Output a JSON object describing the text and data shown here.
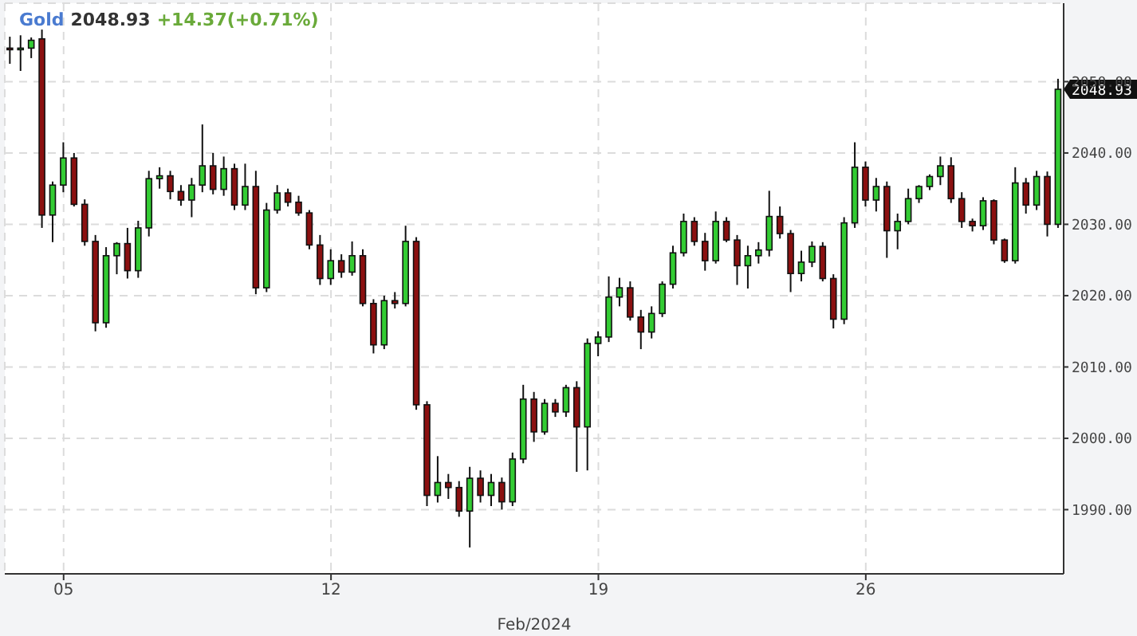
{
  "chart_data": {
    "type": "candlestick",
    "title": "Gold",
    "subtitle": "2048.93",
    "xlabel": "Feb/2024",
    "annotations": [
      "+14.37(+0.71%)",
      "2048.93"
    ],
    "categories": [
      null,
      null,
      null,
      null,
      null,
      "05",
      null,
      null,
      null,
      null,
      null,
      null,
      null,
      null,
      null,
      null,
      null,
      null,
      null,
      null,
      null,
      null,
      null,
      null,
      null,
      null,
      null,
      null,
      null,
      null,
      "12",
      null,
      null,
      null,
      null,
      null,
      null,
      null,
      null,
      null,
      null,
      null,
      null,
      null,
      null,
      null,
      null,
      null,
      null,
      null,
      null,
      null,
      null,
      null,
      null,
      "19",
      null,
      null,
      null,
      null,
      null,
      null,
      null,
      null,
      null,
      null,
      null,
      null,
      null,
      null,
      null,
      null,
      null,
      null,
      null,
      null,
      null,
      null,
      null,
      null,
      "26",
      null,
      null,
      null,
      null,
      null,
      null,
      null,
      null,
      null,
      null,
      null,
      null,
      null,
      null,
      null,
      null,
      null,
      null
    ],
    "ohlc": [
      [
        2054.7,
        2056.3,
        2052.5,
        2054.6
      ],
      [
        2054.6,
        2056.5,
        2051.5,
        2054.7
      ],
      [
        2054.7,
        2056.2,
        2053.3,
        2055.8
      ],
      [
        2056,
        2057.3,
        2029.5,
        2031.3
      ],
      [
        2031.3,
        2036,
        2027.5,
        2035.5
      ],
      [
        2035.5,
        2041.5,
        2034.5,
        2039.3
      ],
      [
        2039.3,
        2040,
        2032.5,
        2032.8
      ],
      [
        2032.8,
        2033.5,
        2027,
        2027.6
      ],
      [
        2027.6,
        2028.5,
        2015,
        2016.2
      ],
      [
        2016.2,
        2026.8,
        2015.5,
        2025.6
      ],
      [
        2025.6,
        2027.5,
        2023,
        2027.3
      ],
      [
        2027.3,
        2029.5,
        2022.4,
        2023.5
      ],
      [
        2023.5,
        2030.5,
        2022.5,
        2029.5
      ],
      [
        2029.5,
        2037.5,
        2028.3,
        2036.4
      ],
      [
        2036.4,
        2038,
        2035,
        2036.8
      ],
      [
        2036.8,
        2037.5,
        2033.5,
        2034.6
      ],
      [
        2034.6,
        2035.5,
        2032.6,
        2033.4
      ],
      [
        2033.4,
        2036.5,
        2031,
        2035.5
      ],
      [
        2035.5,
        2044,
        2034.5,
        2038.2
      ],
      [
        2038.2,
        2040,
        2034.2,
        2034.9
      ],
      [
        2034.9,
        2039.5,
        2034,
        2037.8
      ],
      [
        2037.8,
        2038.5,
        2032,
        2032.7
      ],
      [
        2032.7,
        2038.5,
        2032,
        2035.3
      ],
      [
        2035.3,
        2037.5,
        2020.2,
        2021.1
      ],
      [
        2021.1,
        2033,
        2020.5,
        2032
      ],
      [
        2032,
        2035.5,
        2031.5,
        2034.4
      ],
      [
        2034.4,
        2035,
        2032.5,
        2033.1
      ],
      [
        2033.1,
        2034,
        2031.2,
        2031.6
      ],
      [
        2031.6,
        2032,
        2026.5,
        2027.1
      ],
      [
        2027.1,
        2028.5,
        2021.5,
        2022.4
      ],
      [
        2022.4,
        2026.5,
        2021.5,
        2024.9
      ],
      [
        2024.9,
        2025.8,
        2022.5,
        2023.3
      ],
      [
        2023.3,
        2027.6,
        2022.8,
        2025.6
      ],
      [
        2025.6,
        2026.5,
        2018.5,
        2018.9
      ],
      [
        2018.9,
        2019.5,
        2011.9,
        2013.1
      ],
      [
        2013.1,
        2020,
        2012.5,
        2019.3
      ],
      [
        2019.3,
        2020.5,
        2018.2,
        2018.9
      ],
      [
        2018.9,
        2029.8,
        2018.5,
        2027.6
      ],
      [
        2027.6,
        2028.2,
        2004,
        2004.7
      ],
      [
        2004.7,
        2005.2,
        1990.5,
        1992
      ],
      [
        1992,
        1997.5,
        1991,
        1993.8
      ],
      [
        1993.8,
        1995,
        1991.5,
        1993.1
      ],
      [
        1993.1,
        1994,
        1989,
        1989.8
      ],
      [
        1989.8,
        1996,
        1984.7,
        1994.4
      ],
      [
        1994.4,
        1995.5,
        1991,
        1992
      ],
      [
        1992,
        1995,
        1990.5,
        1993.8
      ],
      [
        1993.8,
        1994.5,
        1990,
        1991.1
      ],
      [
        1991.1,
        1998,
        1990.5,
        1997.1
      ],
      [
        1997.1,
        2007.5,
        1996.5,
        2005.5
      ],
      [
        2005.5,
        2006.5,
        1999.5,
        2000.9
      ],
      [
        2000.9,
        2005.5,
        2000.5,
        2004.9
      ],
      [
        2004.9,
        2005.5,
        2003,
        2003.7
      ],
      [
        2003.7,
        2007.5,
        2003,
        2007.1
      ],
      [
        2007.1,
        2008,
        1995.3,
        2001.6
      ],
      [
        2001.6,
        2014,
        1995.5,
        2013.3
      ],
      [
        2013.3,
        2015,
        2011.5,
        2014.2
      ],
      [
        2014.2,
        2022.7,
        2013.5,
        2019.8
      ],
      [
        2019.8,
        2022.5,
        2018.5,
        2021.1
      ],
      [
        2021.1,
        2022,
        2016.5,
        2017
      ],
      [
        2017,
        2018,
        2012.5,
        2014.9
      ],
      [
        2014.9,
        2018.5,
        2014,
        2017.5
      ],
      [
        2017.5,
        2022,
        2017,
        2021.6
      ],
      [
        2021.6,
        2027,
        2021,
        2026
      ],
      [
        2026,
        2031.5,
        2025.5,
        2030.4
      ],
      [
        2030.4,
        2031,
        2027,
        2027.6
      ],
      [
        2027.6,
        2028.8,
        2023.5,
        2024.9
      ],
      [
        2024.9,
        2031.8,
        2024.5,
        2030.4
      ],
      [
        2030.4,
        2031,
        2027.5,
        2027.8
      ],
      [
        2027.8,
        2028.5,
        2021.5,
        2024.2
      ],
      [
        2024.2,
        2027,
        2021,
        2025.6
      ],
      [
        2025.6,
        2027.5,
        2024.5,
        2026.4
      ],
      [
        2026.4,
        2034.7,
        2025.5,
        2031.1
      ],
      [
        2031.1,
        2032.5,
        2028,
        2028.7
      ],
      [
        2028.7,
        2029.2,
        2020.5,
        2023.1
      ],
      [
        2023.1,
        2026.3,
        2022,
        2024.7
      ],
      [
        2024.7,
        2027.6,
        2024,
        2026.9
      ],
      [
        2026.9,
        2027.5,
        2022,
        2022.4
      ],
      [
        2022.4,
        2023,
        2015.4,
        2016.7
      ],
      [
        2016.7,
        2031,
        2016,
        2030.2
      ],
      [
        2030.2,
        2041.5,
        2029.5,
        2038
      ],
      [
        2038,
        2038.8,
        2032.5,
        2033.4
      ],
      [
        2033.4,
        2036.5,
        2031.8,
        2035.3
      ],
      [
        2035.3,
        2036,
        2025.3,
        2029.1
      ],
      [
        2029.1,
        2031.5,
        2026.5,
        2030.4
      ],
      [
        2030.4,
        2035,
        2030,
        2033.6
      ],
      [
        2033.6,
        2035.5,
        2033,
        2035.3
      ],
      [
        2035.3,
        2037,
        2034.8,
        2036.7
      ],
      [
        2036.7,
        2039.5,
        2035.5,
        2038.2
      ],
      [
        2038.2,
        2039.4,
        2033,
        2033.6
      ],
      [
        2033.6,
        2034.5,
        2029.5,
        2030.4
      ],
      [
        2030.4,
        2030.8,
        2029,
        2029.8
      ],
      [
        2029.8,
        2033.8,
        2029.2,
        2033.3
      ],
      [
        2033.3,
        2033.5,
        2027.2,
        2027.8
      ],
      [
        2027.8,
        2028,
        2024.6,
        2024.9
      ],
      [
        2024.9,
        2038,
        2024.5,
        2035.8
      ],
      [
        2035.8,
        2036.5,
        2031.5,
        2032.7
      ],
      [
        2032.7,
        2037.5,
        2032,
        2036.7
      ],
      [
        2036.7,
        2037.4,
        2028.3,
        2030
      ],
      [
        2030,
        2050.4,
        2029.5,
        2048.93
      ]
    ],
    "colors": [
      "#8b1010",
      "#33cc33",
      "#33cc33",
      "#8b1010",
      "#33cc33",
      "#33cc33",
      "#8b1010",
      "#8b1010",
      "#8b1010",
      "#33cc33",
      "#33cc33",
      "#8b1010",
      "#33cc33",
      "#33cc33",
      "#33cc33",
      "#8b1010",
      "#8b1010",
      "#33cc33",
      "#33cc33",
      "#8b1010",
      "#33cc33",
      "#8b1010",
      "#33cc33",
      "#8b1010",
      "#33cc33",
      "#33cc33",
      "#8b1010",
      "#8b1010",
      "#8b1010",
      "#8b1010",
      "#33cc33",
      "#8b1010",
      "#33cc33",
      "#8b1010",
      "#8b1010",
      "#33cc33",
      "#8b1010",
      "#33cc33",
      "#8b1010",
      "#8b1010",
      "#33cc33",
      "#8b1010",
      "#8b1010",
      "#33cc33",
      "#8b1010",
      "#33cc33",
      "#8b1010",
      "#33cc33",
      "#33cc33",
      "#8b1010",
      "#33cc33",
      "#8b1010",
      "#33cc33",
      "#8b1010",
      "#33cc33",
      "#33cc33",
      "#33cc33",
      "#33cc33",
      "#8b1010",
      "#8b1010",
      "#33cc33",
      "#33cc33",
      "#33cc33",
      "#33cc33",
      "#8b1010",
      "#8b1010",
      "#33cc33",
      "#8b1010",
      "#8b1010",
      "#33cc33",
      "#33cc33",
      "#33cc33",
      "#8b1010",
      "#8b1010",
      "#33cc33",
      "#33cc33",
      "#8b1010",
      "#8b1010",
      "#33cc33",
      "#33cc33",
      "#8b1010",
      "#33cc33",
      "#8b1010",
      "#33cc33",
      "#33cc33",
      "#33cc33",
      "#33cc33",
      "#33cc33",
      "#8b1010",
      "#8b1010",
      "#8b1010",
      "#33cc33",
      "#8b1010",
      "#8b1010",
      "#33cc33",
      "#8b1010",
      "#33cc33",
      "#8b1010",
      "#33cc33"
    ],
    "ylim": [
      1981,
      2061
    ],
    "yticks": [
      {
        "value": 1990,
        "label": "1990.00"
      },
      {
        "value": 2000,
        "label": "2000.00"
      },
      {
        "value": 2010,
        "label": "2010.00"
      },
      {
        "value": 2020,
        "label": "2020.00"
      },
      {
        "value": 2030,
        "label": "2030.00"
      },
      {
        "value": 2040,
        "label": "2040.00"
      },
      {
        "value": 2050,
        "label": "2050.00"
      }
    ],
    "grid": true
  }
}
